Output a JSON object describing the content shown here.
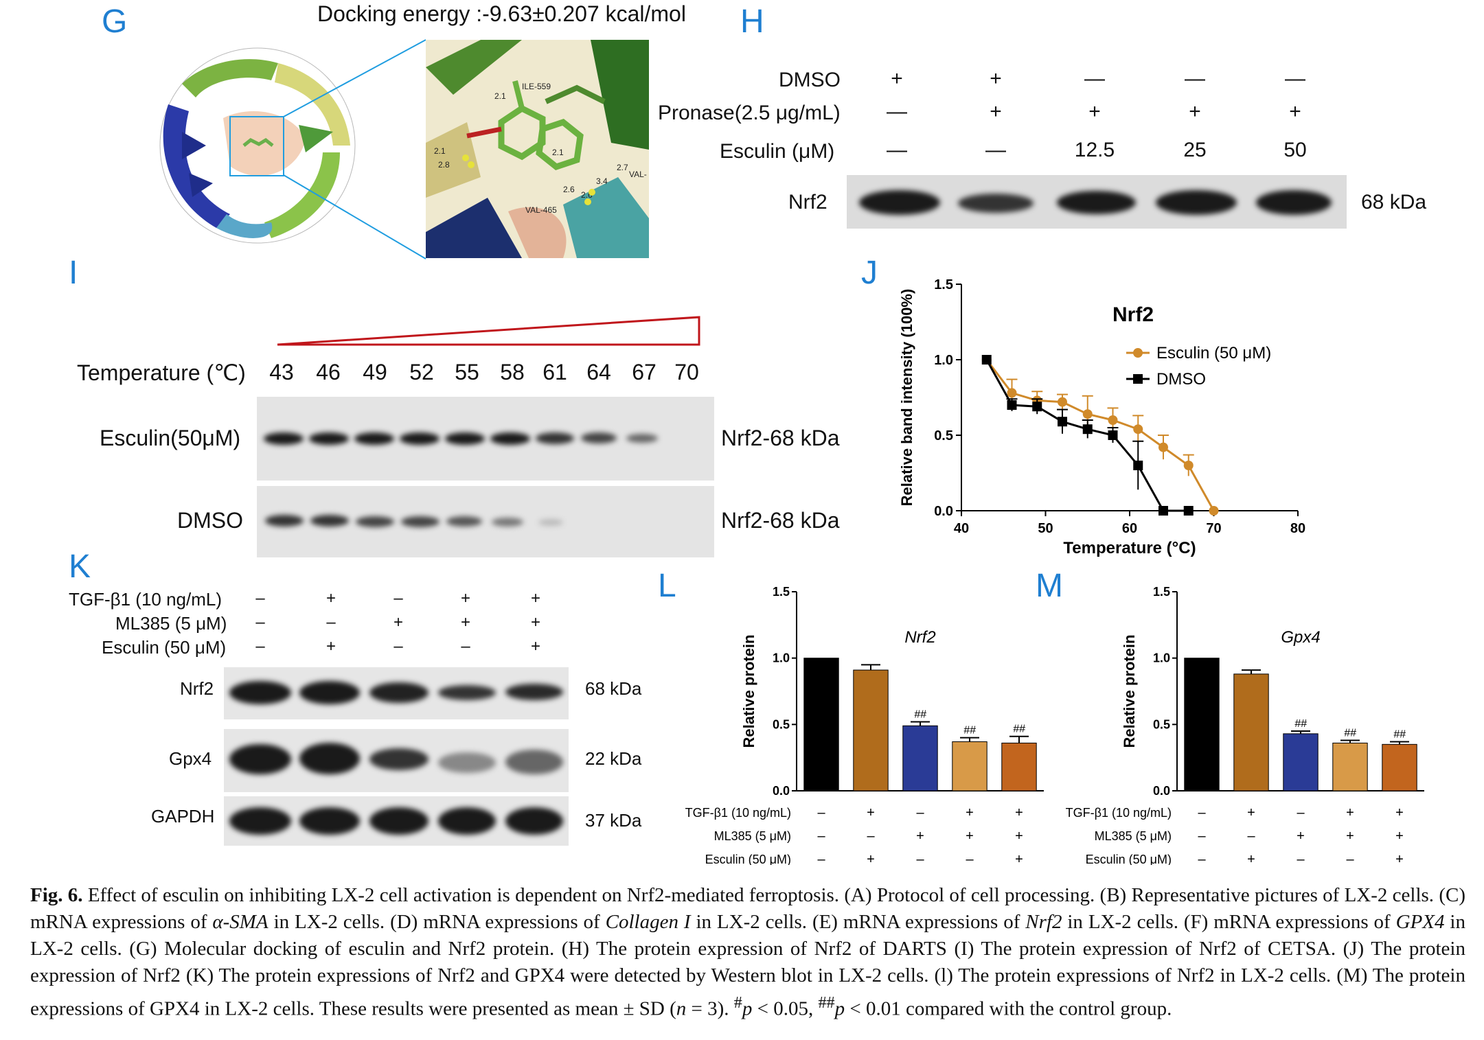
{
  "panel_G": {
    "label": "G",
    "docking_title": "Docking energy :-9.63±0.207 kcal/mol",
    "residues": [
      "ILE-559",
      "VAL-465",
      "VAL-"
    ],
    "distances": [
      "2.1",
      "2.1",
      "2.8",
      "2.1",
      "2.6",
      "3.4",
      "2.7",
      "2.6"
    ]
  },
  "panel_H": {
    "label": "H",
    "rows": [
      {
        "name": "DMSO",
        "values": [
          "+",
          "+",
          "—",
          "—",
          "—"
        ]
      },
      {
        "name": "Pronase(2.5 μg/mL)",
        "values": [
          "—",
          "+",
          "+",
          "+",
          "+"
        ]
      },
      {
        "name": "Esculin (μM)",
        "values": [
          "—",
          "—",
          "12.5",
          "25",
          "50"
        ]
      }
    ],
    "band_label": "Nrf2",
    "band_size": "68 kDa"
  },
  "panel_I": {
    "label": "I",
    "temp_label": "Temperature (℃)",
    "temps": [
      "43",
      "46",
      "49",
      "52",
      "55",
      "58",
      "61",
      "64",
      "67",
      "70"
    ],
    "rows": [
      {
        "name": "Esculin(50μM)",
        "band": "Nrf2-68 kDa"
      },
      {
        "name": "DMSO",
        "band": "Nrf2-68 kDa"
      }
    ]
  },
  "panel_K": {
    "label": "K",
    "rows": [
      {
        "name": "TGF-β1 (10 ng/mL)",
        "values": [
          "–",
          "+",
          "–",
          "+",
          "+"
        ]
      },
      {
        "name": "ML385 (5 μM)",
        "values": [
          "–",
          "–",
          "+",
          "+",
          "+"
        ]
      },
      {
        "name": "Esculin (50 μM)",
        "values": [
          "–",
          "+",
          "–",
          "–",
          "+"
        ]
      }
    ],
    "blots": [
      {
        "name": "Nrf2",
        "size": "68 kDa"
      },
      {
        "name": "Gpx4",
        "size": "22 kDa"
      },
      {
        "name": "GAPDH",
        "size": "37 kDa"
      }
    ]
  },
  "conditions": {
    "rows": [
      {
        "name": "TGF-β1 (10 ng/mL)",
        "values": [
          "–",
          "+",
          "–",
          "+",
          "+"
        ]
      },
      {
        "name": "ML385 (5 μM)",
        "values": [
          "–",
          "–",
          "+",
          "+",
          "+"
        ]
      },
      {
        "name": "Esculin (50 μM)",
        "values": [
          "–",
          "+",
          "–",
          "–",
          "+"
        ]
      }
    ]
  },
  "panel_L_label": "L",
  "panel_M_label": "M",
  "panel_J_label": "J",
  "colors": {
    "panel_label": "#1f7fd1",
    "esculin_line": "#d08a2a",
    "dmso_line": "#000000",
    "bar_black": "#000000",
    "bar_brown": "#b06c1c",
    "bar_blue": "#2a3b96",
    "bar_tan": "#d89a48",
    "bar_orange": "#c2651e"
  },
  "chart_data": [
    {
      "id": "J",
      "type": "line",
      "title": "Nrf2",
      "xlabel": "Temperature (°C)",
      "ylabel": "Relative band intensity (100%)",
      "xlim": [
        40,
        80
      ],
      "ylim": [
        0,
        1.5
      ],
      "xticks": [
        "40",
        "50",
        "60",
        "70",
        "80"
      ],
      "yticks": [
        "0.0",
        "0.5",
        "1.0",
        "1.5"
      ],
      "legend": "top-right",
      "series": [
        {
          "name": "Esculin (50 μM)",
          "x": [
            43,
            46,
            49,
            52,
            55,
            58,
            61,
            64,
            67,
            70
          ],
          "y": [
            1.0,
            0.78,
            0.73,
            0.72,
            0.64,
            0.6,
            0.54,
            0.42,
            0.3,
            0.0
          ],
          "err": [
            0,
            0.09,
            0.06,
            0.05,
            0.12,
            0.08,
            0.09,
            0.08,
            0.07,
            0
          ]
        },
        {
          "name": "DMSO",
          "x": [
            43,
            46,
            49,
            52,
            55,
            58,
            61,
            64,
            67
          ],
          "y": [
            1.0,
            0.7,
            0.69,
            0.59,
            0.54,
            0.5,
            0.3,
            0.0,
            0.0
          ],
          "err": [
            0,
            0.04,
            0.05,
            0.08,
            0.06,
            0.05,
            0.16,
            0,
            0
          ]
        }
      ]
    },
    {
      "id": "L",
      "type": "bar",
      "title": "Nrf2",
      "ylabel": "Relative protein",
      "ylim": [
        0,
        1.5
      ],
      "yticks": [
        "0.0",
        "0.5",
        "1.0",
        "1.5"
      ],
      "values": [
        1.0,
        0.91,
        0.49,
        0.37,
        0.36
      ],
      "err": [
        0,
        0.04,
        0.03,
        0.03,
        0.05
      ],
      "annotations": [
        "",
        "",
        "##",
        "##",
        "##"
      ]
    },
    {
      "id": "M",
      "type": "bar",
      "title": "Gpx4",
      "ylabel": "Relative protein",
      "ylim": [
        0,
        1.5
      ],
      "yticks": [
        "0.0",
        "0.5",
        "1.0",
        "1.5"
      ],
      "values": [
        1.0,
        0.88,
        0.43,
        0.36,
        0.35
      ],
      "err": [
        0,
        0.03,
        0.02,
        0.02,
        0.02
      ],
      "annotations": [
        "",
        "",
        "##",
        "##",
        "##"
      ]
    }
  ],
  "caption": {
    "fig_label": "Fig. 6.",
    "p1": " Effect of esculin on inhibiting LX-2 cell activation is dependent on Nrf2-mediated ferroptosis. (A) Protocol of cell processing. (B) Representative pictures of LX-2 cells. (C) mRNA expressions of ",
    "i1": "α-SMA",
    "p2": " in LX-2 cells. (D) mRNA expressions of ",
    "i2": "Collagen I",
    "p3": " in LX-2 cells. (E) mRNA expressions of ",
    "i3": "Nrf2",
    "p4": " in LX-2 cells. (F) mRNA expressions of ",
    "i4": "GPX4",
    "p5": " in LX-2 cells. (G) Molecular docking of esculin and Nrf2 protein. (H) The protein expression of Nrf2 of DARTS (I) The protein expression of Nrf2 of CETSA. (J) The protein expression of Nrf2 (K) The protein expressions of Nrf2 and GPX4 were detected by Western blot in LX-2 cells. (l) The protein expressions of Nrf2 in LX-2 cells. (M) The protein expressions of GPX4 in LX-2 cells. These results were presented as mean ± SD (",
    "i5": "n",
    "p6": " = 3). ",
    "sup1": "#",
    "i6": "p",
    "p7": " < 0.05, ",
    "sup2": "##",
    "i7": "p",
    "p8": " < 0.01 compared with the control group."
  }
}
